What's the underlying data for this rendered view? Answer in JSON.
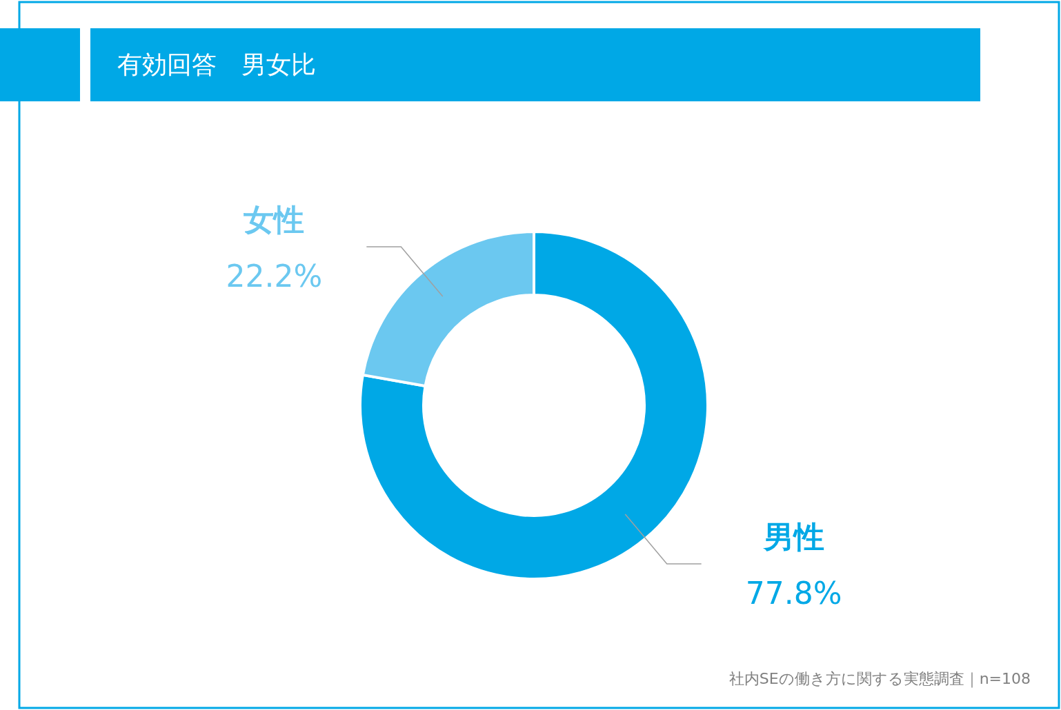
{
  "chart_data": {
    "type": "donut",
    "title": "有効回答　男女比",
    "categories": [
      "男性",
      "女性"
    ],
    "values": [
      77.8,
      22.2
    ],
    "value_labels": [
      "77.8%",
      "22.2%"
    ],
    "colors": [
      "#00a8e6",
      "#6bc8f0"
    ],
    "annotations": [
      "社内SEの働き方に関する実態調査｜n=108"
    ]
  }
}
